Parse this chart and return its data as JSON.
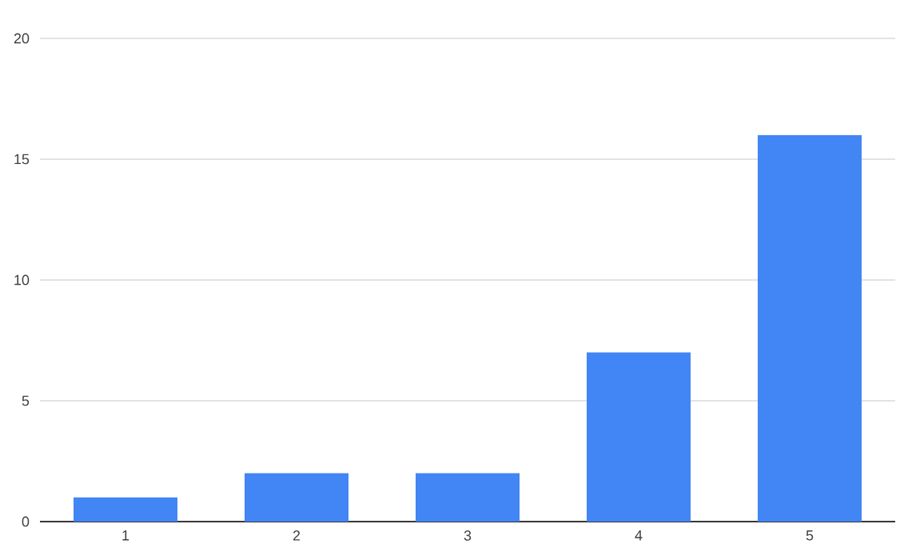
{
  "chart_data": {
    "type": "bar",
    "categories": [
      "1",
      "2",
      "3",
      "4",
      "5"
    ],
    "values": [
      1,
      2,
      2,
      7,
      16
    ],
    "color": "#4285f4",
    "ylim": [
      0,
      20
    ],
    "yticks": [
      0,
      5,
      10,
      15,
      20
    ],
    "grid": "y"
  }
}
